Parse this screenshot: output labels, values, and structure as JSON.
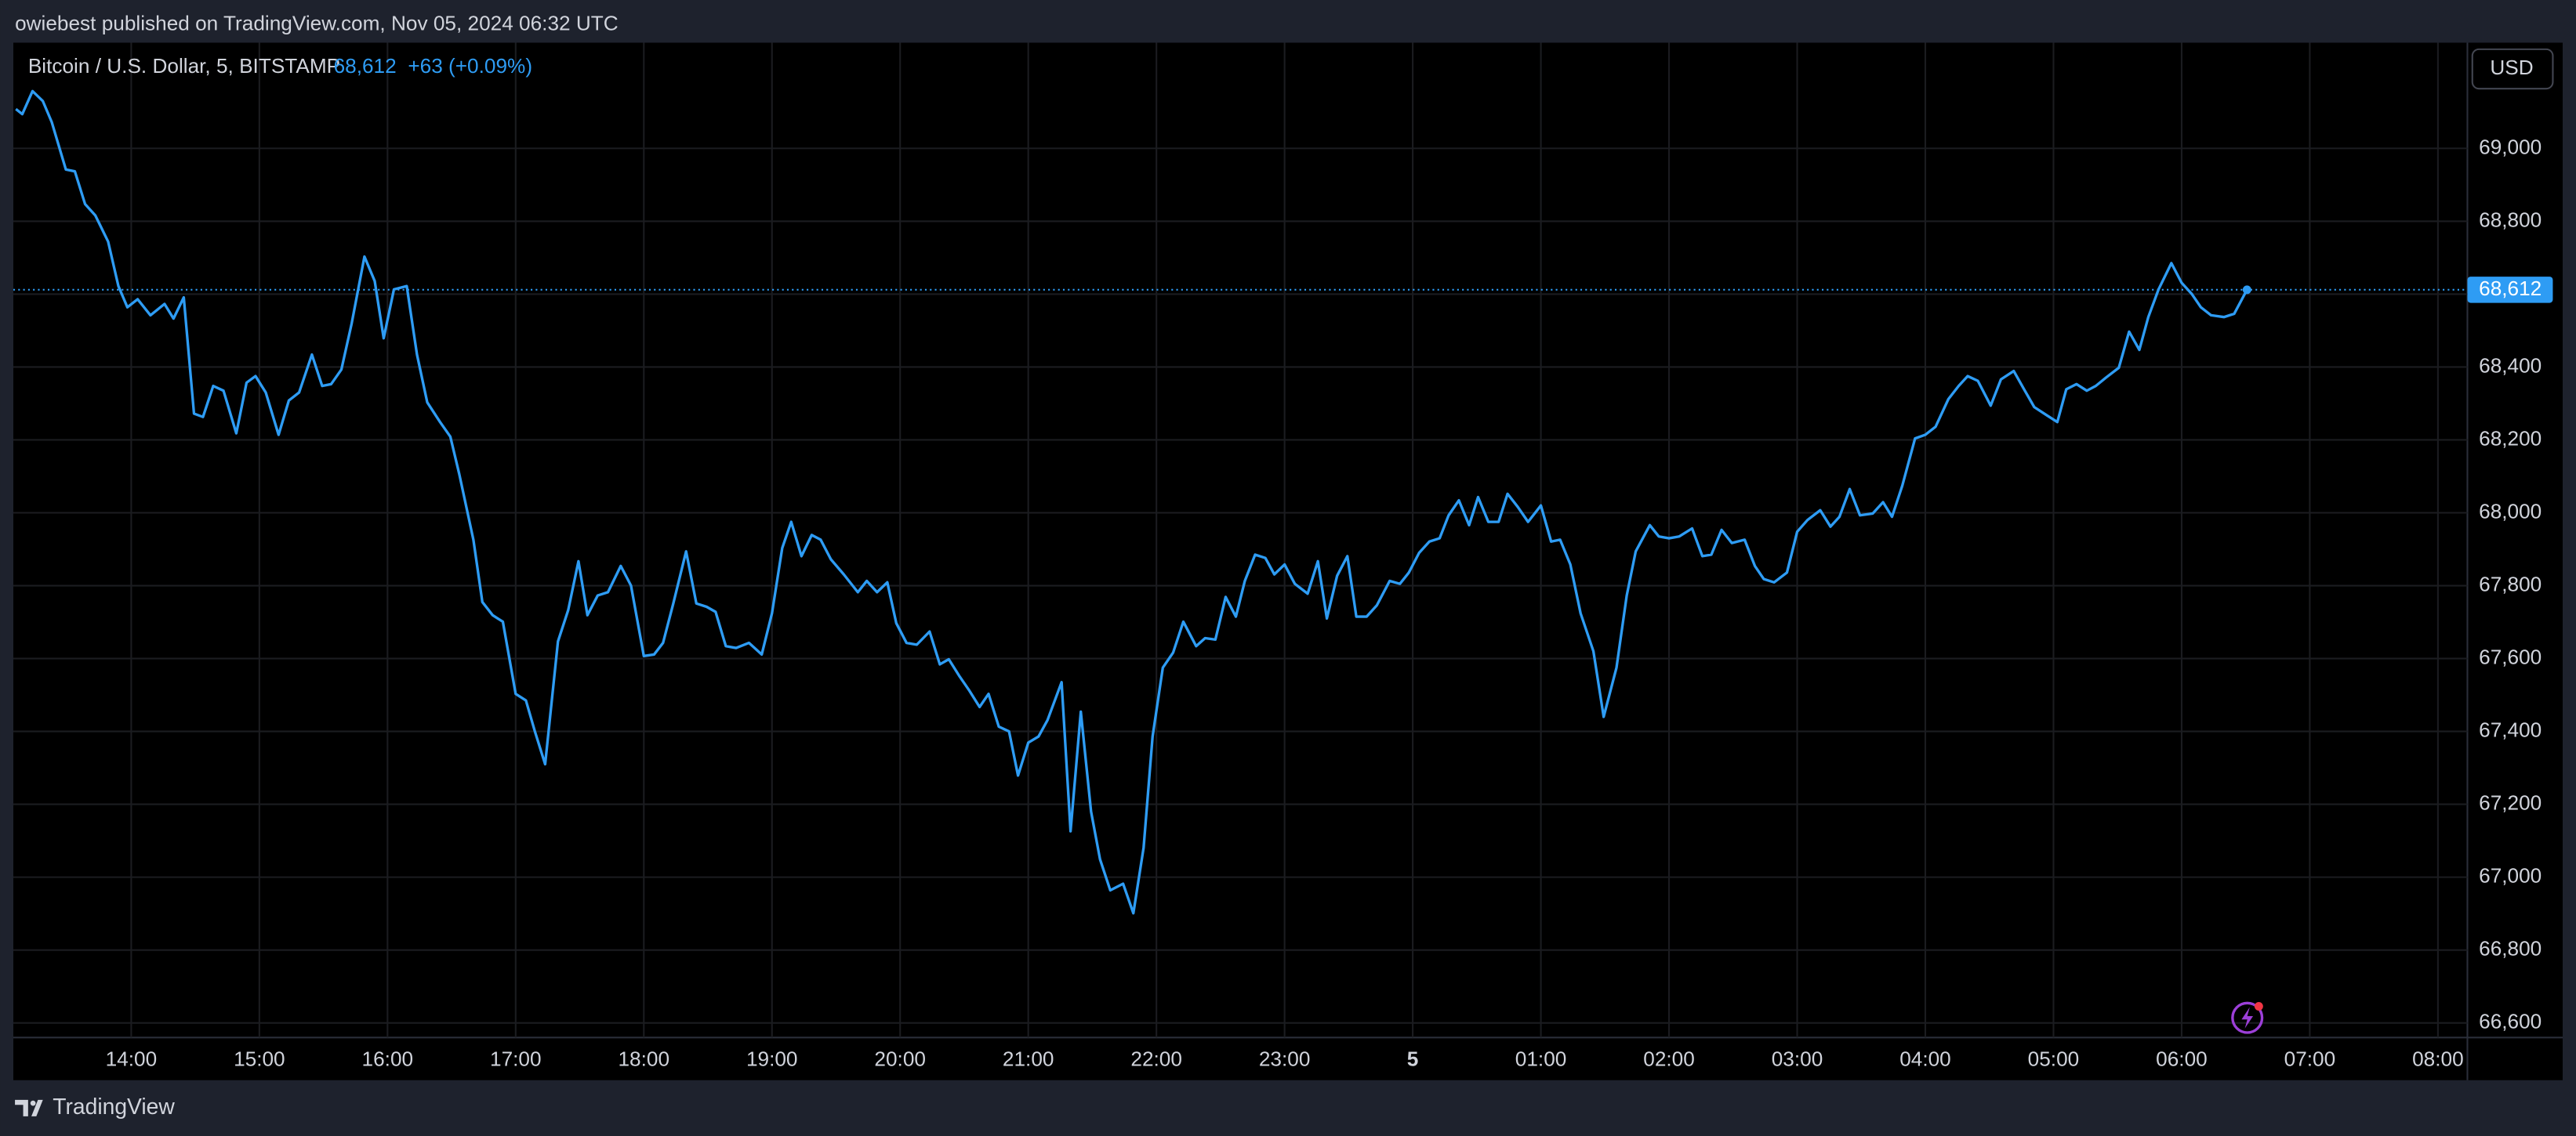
{
  "header": "owiebest published on TradingView.com, Nov 05, 2024 06:32 UTC",
  "footer": "TradingView",
  "currency": "USD",
  "chart_data": {
    "type": "line",
    "title": "Bitcoin / U.S. Dollar, 5, BITSTAMP",
    "last_price": {
      "value": 68612,
      "label": "68,612"
    },
    "change_label": "+63 (+0.09%)",
    "color": "#2e9cf4",
    "grid": true,
    "xlim": [
      13.08,
      32.23
    ],
    "ylim": [
      66560,
      69290
    ],
    "xticks": [
      {
        "value": 14,
        "label": "14:00"
      },
      {
        "value": 15,
        "label": "15:00"
      },
      {
        "value": 16,
        "label": "16:00"
      },
      {
        "value": 17,
        "label": "17:00"
      },
      {
        "value": 18,
        "label": "18:00"
      },
      {
        "value": 19,
        "label": "19:00"
      },
      {
        "value": 20,
        "label": "20:00"
      },
      {
        "value": 21,
        "label": "21:00"
      },
      {
        "value": 22,
        "label": "22:00"
      },
      {
        "value": 23,
        "label": "23:00"
      },
      {
        "value": 24,
        "label": "5"
      },
      {
        "value": 25,
        "label": "01:00"
      },
      {
        "value": 26,
        "label": "02:00"
      },
      {
        "value": 27,
        "label": "03:00"
      },
      {
        "value": 28,
        "label": "04:00"
      },
      {
        "value": 29,
        "label": "05:00"
      },
      {
        "value": 30,
        "label": "06:00"
      },
      {
        "value": 31,
        "label": "07:00"
      },
      {
        "value": 32,
        "label": "08:00"
      }
    ],
    "yticks": [
      {
        "value": 66600,
        "label": "66,600"
      },
      {
        "value": 66800,
        "label": "66,800"
      },
      {
        "value": 67000,
        "label": "67,000"
      },
      {
        "value": 67200,
        "label": "67,200"
      },
      {
        "value": 67400,
        "label": "67,400"
      },
      {
        "value": 67600,
        "label": "67,600"
      },
      {
        "value": 67800,
        "label": "67,800"
      },
      {
        "value": 68000,
        "label": "68,000"
      },
      {
        "value": 68200,
        "label": "68,200"
      },
      {
        "value": 68400,
        "label": "68,400"
      },
      {
        "value": 68600,
        "label": "68,600"
      },
      {
        "value": 68800,
        "label": "68,800"
      },
      {
        "value": 69000,
        "label": "69,000"
      }
    ],
    "x": [
      13.1,
      13.15,
      13.23,
      13.31,
      13.38,
      13.49,
      13.56,
      13.64,
      13.72,
      13.82,
      13.9,
      13.97,
      14.05,
      14.15,
      14.26,
      14.33,
      14.41,
      14.49,
      14.56,
      14.64,
      14.72,
      14.82,
      14.9,
      14.97,
      15.05,
      15.15,
      15.23,
      15.31,
      15.41,
      15.49,
      15.56,
      15.64,
      15.72,
      15.82,
      15.9,
      15.97,
      16.05,
      16.15,
      16.23,
      16.31,
      16.41,
      16.49,
      16.56,
      16.67,
      16.74,
      16.82,
      16.9,
      17.0,
      17.08,
      17.15,
      17.23,
      17.33,
      17.41,
      17.49,
      17.56,
      17.64,
      17.72,
      17.82,
      17.9,
      18.0,
      18.08,
      18.15,
      18.23,
      18.33,
      18.41,
      18.49,
      18.56,
      18.64,
      18.72,
      18.82,
      18.92,
      19.0,
      19.08,
      19.15,
      19.23,
      19.31,
      19.38,
      19.46,
      19.56,
      19.67,
      19.74,
      19.82,
      19.9,
      19.97,
      20.05,
      20.13,
      20.23,
      20.31,
      20.38,
      20.46,
      20.54,
      20.62,
      20.69,
      20.77,
      20.85,
      20.92,
      21.0,
      21.08,
      21.15,
      21.26,
      21.33,
      21.41,
      21.49,
      21.56,
      21.64,
      21.74,
      21.82,
      21.9,
      21.97,
      22.05,
      22.13,
      22.21,
      22.31,
      22.38,
      22.46,
      22.54,
      22.62,
      22.69,
      22.77,
      22.85,
      22.92,
      23.0,
      23.08,
      23.18,
      23.26,
      23.33,
      23.41,
      23.49,
      23.56,
      23.64,
      23.72,
      23.82,
      23.9,
      23.97,
      24.05,
      24.13,
      24.21,
      24.28,
      24.36,
      24.44,
      24.51,
      24.59,
      24.67,
      24.74,
      24.82,
      24.9,
      25.0,
      25.08,
      25.15,
      25.23,
      25.31,
      25.41,
      25.49,
      25.59,
      25.67,
      25.74,
      25.85,
      25.92,
      26.0,
      26.08,
      26.18,
      26.26,
      26.33,
      26.41,
      26.49,
      26.59,
      26.67,
      26.74,
      26.82,
      26.92,
      27.0,
      27.08,
      27.18,
      27.26,
      27.33,
      27.41,
      27.49,
      27.59,
      27.67,
      27.74,
      27.82,
      27.92,
      28.0,
      28.08,
      28.18,
      28.26,
      28.33,
      28.41,
      28.51,
      28.59,
      28.69,
      28.77,
      28.85,
      28.95,
      29.03,
      29.1,
      29.18,
      29.26,
      29.33,
      29.41,
      29.51,
      29.59,
      29.67,
      29.74,
      29.82,
      29.92,
      30.0,
      30.08,
      30.15,
      30.23,
      30.33,
      30.41,
      30.51
    ],
    "values": [
      69108,
      69094,
      69157,
      69130,
      69072,
      68942,
      68937,
      68847,
      68816,
      68744,
      68622,
      68564,
      68586,
      68542,
      68573,
      68533,
      68591,
      68272,
      68263,
      68348,
      68335,
      68218,
      68357,
      68375,
      68330,
      68214,
      68308,
      68330,
      68434,
      68348,
      68353,
      68393,
      68519,
      68703,
      68636,
      68479,
      68613,
      68622,
      68434,
      68303,
      68249,
      68209,
      68106,
      67926,
      67755,
      67719,
      67701,
      67503,
      67485,
      67400,
      67310,
      67647,
      67733,
      67867,
      67719,
      67773,
      67782,
      67854,
      67800,
      67607,
      67611,
      67643,
      67751,
      67894,
      67751,
      67742,
      67728,
      67634,
      67629,
      67643,
      67611,
      67724,
      67903,
      67975,
      67881,
      67939,
      67926,
      67872,
      67831,
      67782,
      67813,
      67782,
      67809,
      67697,
      67643,
      67638,
      67674,
      67584,
      67598,
      67553,
      67512,
      67467,
      67503,
      67413,
      67400,
      67279,
      67369,
      67386,
      67431,
      67535,
      67126,
      67454,
      67180,
      67049,
      66964,
      66982,
      66901,
      67081,
      67386,
      67575,
      67616,
      67701,
      67634,
      67656,
      67652,
      67769,
      67715,
      67813,
      67885,
      67876,
      67831,
      67858,
      67805,
      67778,
      67867,
      67710,
      67827,
      67881,
      67715,
      67715,
      67746,
      67813,
      67805,
      67836,
      67890,
      67921,
      67930,
      67993,
      68034,
      67966,
      68043,
      67975,
      67975,
      68052,
      68016,
      67975,
      68020,
      67921,
      67926,
      67858,
      67724,
      67620,
      67440,
      67575,
      67773,
      67894,
      67966,
      67935,
      67930,
      67935,
      67957,
      67881,
      67885,
      67953,
      67917,
      67926,
      67854,
      67818,
      67809,
      67836,
      67948,
      67980,
      68007,
      67962,
      67989,
      68065,
      67993,
      67998,
      68029,
      67989,
      68074,
      68204,
      68214,
      68236,
      68312,
      68348,
      68375,
      68362,
      68294,
      68366,
      68389,
      68339,
      68290,
      68267,
      68249,
      68339,
      68353,
      68335,
      68348,
      68371,
      68398,
      68497,
      68447,
      68537,
      68613,
      68685,
      68631,
      68600,
      68564,
      68542,
      68537,
      68546,
      68612
    ]
  }
}
